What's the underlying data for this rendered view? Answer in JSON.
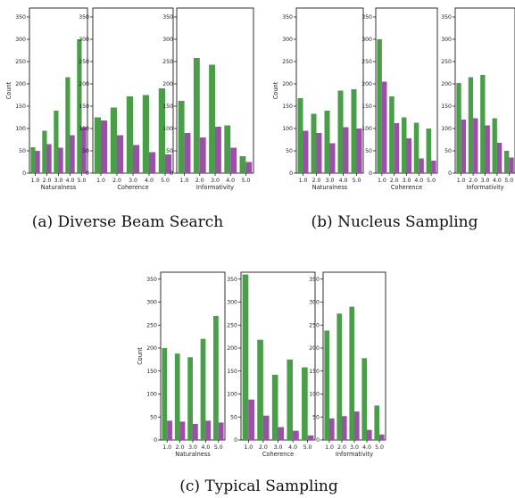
{
  "colors": {
    "green": "#4a9e4a",
    "purple": "#9b4fa8"
  },
  "captions": [
    "(a) Diverse Beam Search",
    "(b) Nucleus Sampling",
    "(c) Typical Sampling"
  ],
  "chart_data": [
    {
      "type": "bar",
      "group": "a",
      "xlabel": "Naturalness",
      "ylabel": "Count",
      "ylim": [
        0,
        370
      ],
      "yticks": [
        0,
        50,
        100,
        150,
        200,
        250,
        300,
        350
      ],
      "categories": [
        "1.0",
        "2.0",
        "3.0",
        "4.0",
        "5.0"
      ],
      "series": [
        {
          "values": [
            58,
            95,
            140,
            215,
            300
          ]
        },
        {
          "values": [
            50,
            65,
            57,
            85,
            103
          ]
        }
      ]
    },
    {
      "type": "bar",
      "group": "a",
      "xlabel": "Coherence",
      "ylabel": "",
      "ylim": [
        0,
        370
      ],
      "yticks": [
        0,
        50,
        100,
        150,
        200,
        250,
        300,
        350
      ],
      "categories": [
        "1.0",
        "2.0",
        "3.0",
        "4.0",
        "5.0"
      ],
      "series": [
        {
          "values": [
            125,
            147,
            172,
            175,
            190
          ]
        },
        {
          "values": [
            118,
            85,
            63,
            47,
            42
          ]
        }
      ]
    },
    {
      "type": "bar",
      "group": "a",
      "xlabel": "Informativity",
      "ylabel": "",
      "ylim": [
        0,
        370
      ],
      "yticks": [
        0,
        50,
        100,
        150,
        200,
        250,
        300,
        350
      ],
      "categories": [
        "1.0",
        "2.0",
        "3.0",
        "4.0",
        "5.0"
      ],
      "series": [
        {
          "values": [
            162,
            258,
            243,
            107,
            38
          ]
        },
        {
          "values": [
            90,
            80,
            104,
            57,
            25
          ]
        }
      ]
    },
    {
      "type": "bar",
      "group": "b",
      "xlabel": "Naturalness",
      "ylabel": "Count",
      "ylim": [
        0,
        370
      ],
      "yticks": [
        0,
        50,
        100,
        150,
        200,
        250,
        300,
        350
      ],
      "categories": [
        "1.0",
        "2.0",
        "3.0",
        "4.0",
        "5.0"
      ],
      "series": [
        {
          "values": [
            168,
            133,
            140,
            185,
            188
          ]
        },
        {
          "values": [
            95,
            90,
            67,
            103,
            100
          ]
        }
      ]
    },
    {
      "type": "bar",
      "group": "b",
      "xlabel": "Coherence",
      "ylabel": "",
      "ylim": [
        0,
        370
      ],
      "yticks": [
        0,
        50,
        100,
        150,
        200,
        250,
        300,
        350
      ],
      "categories": [
        "1.0",
        "2.0",
        "3.0",
        "4.0",
        "5.0"
      ],
      "series": [
        {
          "values": [
            300,
            172,
            125,
            113,
            100
          ]
        },
        {
          "values": [
            205,
            112,
            78,
            33,
            28
          ]
        }
      ]
    },
    {
      "type": "bar",
      "group": "b",
      "xlabel": "Informativity",
      "ylabel": "",
      "ylim": [
        0,
        370
      ],
      "yticks": [
        0,
        50,
        100,
        150,
        200,
        250,
        300,
        350
      ],
      "categories": [
        "1.0",
        "2.0",
        "3.0",
        "4.0",
        "5.0"
      ],
      "series": [
        {
          "values": [
            202,
            215,
            220,
            123,
            50
          ]
        },
        {
          "values": [
            120,
            123,
            107,
            68,
            35
          ]
        }
      ]
    },
    {
      "type": "bar",
      "group": "c",
      "xlabel": "Naturalness",
      "ylabel": "Count",
      "ylim": [
        0,
        365
      ],
      "yticks": [
        0,
        50,
        100,
        150,
        200,
        250,
        300,
        350
      ],
      "categories": [
        "1.0",
        "2.0",
        "3.0",
        "4.0",
        "5.0"
      ],
      "series": [
        {
          "values": [
            200,
            188,
            180,
            220,
            270
          ]
        },
        {
          "values": [
            42,
            40,
            35,
            42,
            38
          ]
        }
      ]
    },
    {
      "type": "bar",
      "group": "c",
      "xlabel": "Coherence",
      "ylabel": "",
      "ylim": [
        0,
        365
      ],
      "yticks": [
        0,
        50,
        100,
        150,
        200,
        250,
        300,
        350
      ],
      "categories": [
        "1.0",
        "2.0",
        "3.0",
        "4.0",
        "5.0"
      ],
      "series": [
        {
          "values": [
            360,
            218,
            142,
            175,
            158
          ]
        },
        {
          "values": [
            88,
            53,
            28,
            20,
            10
          ]
        }
      ]
    },
    {
      "type": "bar",
      "group": "c",
      "xlabel": "Informativity",
      "ylabel": "",
      "ylim": [
        0,
        365
      ],
      "yticks": [
        0,
        50,
        100,
        150,
        200,
        250,
        300,
        350
      ],
      "categories": [
        "1.0",
        "2.0",
        "3.0",
        "4.0",
        "5.0"
      ],
      "series": [
        {
          "values": [
            238,
            275,
            290,
            178,
            75
          ]
        },
        {
          "values": [
            47,
            52,
            62,
            22,
            12
          ]
        }
      ]
    }
  ]
}
